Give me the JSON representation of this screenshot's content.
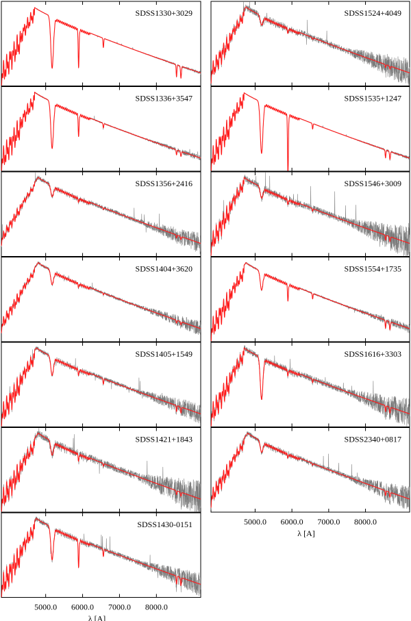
{
  "chart_data": {
    "type": "line",
    "layout": "2-column grid of spectrum panels (left column 7 panels, right column 6 panels)",
    "xlabel": "λ [A]",
    "x_tick_labels": [
      "5000.0",
      "6000.0",
      "7000.0",
      "8000.0"
    ],
    "xlim": [
      3800,
      9200
    ],
    "series_legend": [
      {
        "name": "",
        "role": "observed spectrum",
        "color": "#7a7a7a"
      },
      {
        "name": "",
        "role": "model fit",
        "color": "#ff1a1a"
      }
    ],
    "panels": [
      {
        "label": "SDSS1330+3029",
        "column": "left",
        "noise": 0.01,
        "peak_x": 4680,
        "features": {
          "balmer_depth": 0.6,
          "mgb": 0.55,
          "nad": 0.35,
          "halpha": 0.1,
          "tio": 0.12
        }
      },
      {
        "label": "SDSS1336+3547",
        "column": "left",
        "noise": 0.02,
        "peak_x": 4700,
        "features": {
          "balmer_depth": 0.6,
          "mgb": 0.5,
          "nad": 0.2,
          "halpha": 0.05,
          "tio": 0.05
        }
      },
      {
        "label": "SDSS1356+2416",
        "column": "left",
        "noise": 0.07,
        "peak_x": 4800,
        "features": {
          "balmer_depth": 0.25,
          "mgb": 0.12,
          "nad": 0.03,
          "halpha": 0.02,
          "tio": 0.03
        }
      },
      {
        "label": "SDSS1404+3620",
        "column": "left",
        "noise": 0.05,
        "peak_x": 4800,
        "features": {
          "balmer_depth": 0.3,
          "mgb": 0.15,
          "nad": 0.03,
          "halpha": 0.02,
          "tio": 0.03
        }
      },
      {
        "label": "SDSS1405+1549",
        "column": "left",
        "noise": 0.07,
        "peak_x": 4750,
        "features": {
          "balmer_depth": 0.55,
          "mgb": 0.2,
          "nad": 0.05,
          "halpha": 0.06,
          "tio": 0.06
        }
      },
      {
        "label": "SDSS1421+1843",
        "column": "left",
        "noise": 0.12,
        "peak_x": 4800,
        "features": {
          "balmer_depth": 0.55,
          "mgb": 0.15,
          "nad": 0.06,
          "halpha": 0.03,
          "tio": 0.04
        }
      },
      {
        "label": "SDSS1430-0151",
        "column": "left",
        "noise": 0.08,
        "peak_x": 4750,
        "features": {
          "balmer_depth": 0.6,
          "mgb": 0.35,
          "nad": 0.25,
          "halpha": 0.08,
          "tio": 0.08
        }
      },
      {
        "label": "SDSS1524+4049",
        "column": "right",
        "noise": 0.1,
        "peak_x": 4750,
        "features": {
          "balmer_depth": 0.45,
          "mgb": 0.1,
          "nad": 0.04,
          "halpha": 0.02,
          "tio": 0.03
        }
      },
      {
        "label": "SDSS1535+1247",
        "column": "right",
        "noise": 0.01,
        "peak_x": 4680,
        "features": {
          "balmer_depth": 0.6,
          "mgb": 0.55,
          "nad": 0.55,
          "halpha": 0.06,
          "tio": 0.08
        }
      },
      {
        "label": "SDSS1546+3009",
        "column": "right",
        "noise": 0.11,
        "peak_x": 4700,
        "features": {
          "balmer_depth": 0.5,
          "mgb": 0.12,
          "nad": 0.04,
          "halpha": 0.03,
          "tio": 0.05
        }
      },
      {
        "label": "SDSS1554+1735",
        "column": "right",
        "noise": 0.03,
        "peak_x": 4750,
        "features": {
          "balmer_depth": 0.55,
          "mgb": 0.2,
          "nad": 0.15,
          "halpha": 0.06,
          "tio": 0.08
        }
      },
      {
        "label": "SDSS1616+3303",
        "column": "right",
        "noise": 0.1,
        "peak_x": 4700,
        "features": {
          "balmer_depth": 0.55,
          "mgb": 0.45,
          "nad": 0.05,
          "halpha": 0.04,
          "tio": 0.06
        }
      },
      {
        "label": "SDSS2340+0817",
        "column": "right",
        "noise": 0.08,
        "peak_x": 4800,
        "features": {
          "balmer_depth": 0.4,
          "mgb": 0.12,
          "nad": 0.03,
          "halpha": 0.02,
          "tio": 0.05
        }
      }
    ]
  }
}
